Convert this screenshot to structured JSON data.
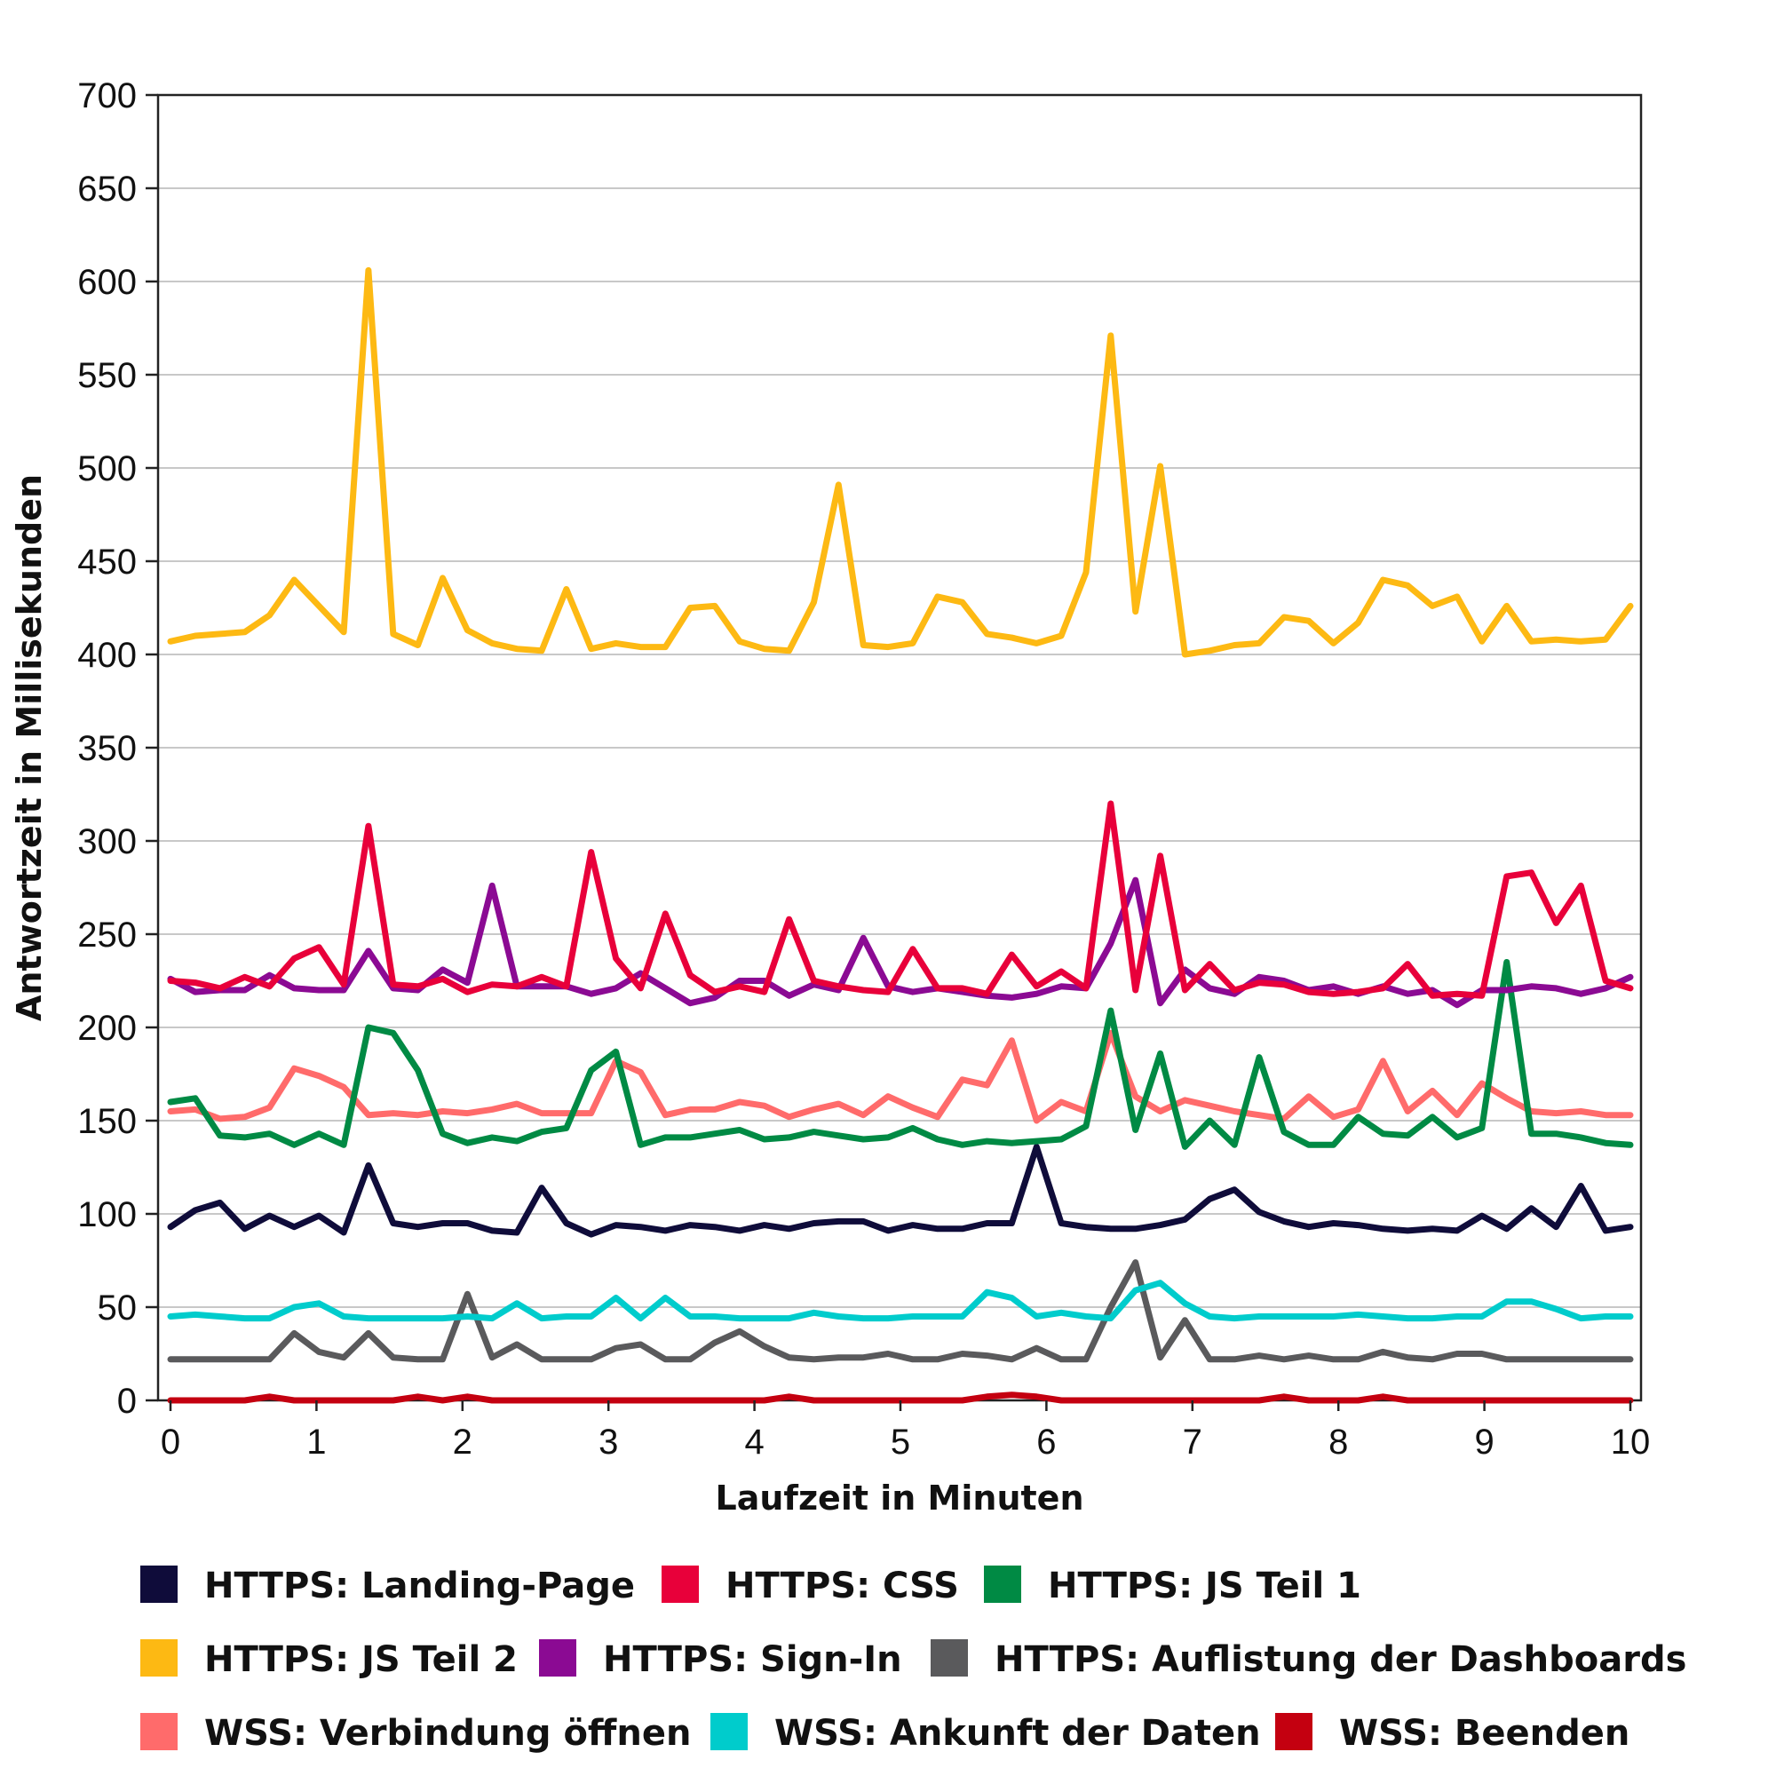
{
  "chart_data": {
    "type": "line",
    "title": "",
    "xlabel": "Laufzeit in Minuten",
    "ylabel": "Antwortzeit in Millisekunden",
    "xlim": [
      0,
      10
    ],
    "ylim": [
      0,
      700
    ],
    "xticks": [
      "0",
      "1",
      "2",
      "3",
      "4",
      "5",
      "6",
      "7",
      "8",
      "9",
      "10"
    ],
    "yticks": [
      "0",
      "50",
      "100",
      "150",
      "200",
      "250",
      "300",
      "350",
      "400",
      "450",
      "500",
      "550",
      "600",
      "650",
      "700"
    ],
    "grid": "horizontal",
    "legend_position": "bottom",
    "series": [
      {
        "name": "HTTPS: Landing-Page",
        "color": "#0f0c3a",
        "values": [
          93,
          102,
          106,
          92,
          99,
          93,
          99,
          90,
          126,
          95,
          93,
          95,
          95,
          91,
          90,
          114,
          95,
          89,
          94,
          93,
          91,
          94,
          93,
          91,
          94,
          92,
          95,
          96,
          96,
          91,
          94,
          92,
          92,
          95,
          95,
          136,
          95,
          93,
          92,
          92,
          94,
          97,
          108,
          113,
          101,
          96,
          93,
          95,
          94,
          92,
          91,
          92,
          91,
          99,
          92,
          103,
          93,
          115,
          91,
          93
        ]
      },
      {
        "name": "HTTPS: CSS",
        "color": "#e8003a",
        "values": [
          225,
          224,
          221,
          227,
          222,
          237,
          243,
          223,
          308,
          223,
          222,
          226,
          219,
          223,
          222,
          227,
          222,
          294,
          237,
          221,
          261,
          228,
          219,
          222,
          219,
          258,
          225,
          222,
          220,
          219,
          242,
          221,
          221,
          218,
          239,
          222,
          230,
          221,
          320,
          220,
          292,
          220,
          234,
          220,
          224,
          223,
          219,
          218,
          219,
          221,
          234,
          217,
          218,
          217,
          281,
          283,
          256,
          276,
          225,
          221
        ]
      },
      {
        "name": "HTTPS: JS Teil 1",
        "color": "#008a44",
        "values": [
          160,
          162,
          142,
          141,
          143,
          137,
          143,
          137,
          200,
          197,
          177,
          143,
          138,
          141,
          139,
          144,
          146,
          177,
          187,
          137,
          141,
          141,
          143,
          145,
          140,
          141,
          144,
          142,
          140,
          141,
          146,
          140,
          137,
          139,
          138,
          139,
          140,
          147,
          209,
          145,
          186,
          136,
          150,
          137,
          184,
          144,
          137,
          137,
          152,
          143,
          142,
          152,
          141,
          146,
          235,
          143,
          143,
          141,
          138,
          137
        ]
      },
      {
        "name": "HTTPS: JS Teil 2",
        "color": "#fdb913",
        "values": [
          407,
          410,
          411,
          412,
          421,
          440,
          426,
          412,
          606,
          411,
          405,
          441,
          413,
          406,
          403,
          402,
          435,
          403,
          406,
          404,
          404,
          425,
          426,
          407,
          403,
          402,
          428,
          491,
          405,
          404,
          406,
          431,
          428,
          411,
          409,
          406,
          410,
          444,
          571,
          423,
          501,
          400,
          402,
          405,
          406,
          420,
          418,
          406,
          417,
          440,
          437,
          426,
          431,
          407,
          426,
          407,
          408,
          407,
          408,
          426
        ]
      },
      {
        "name": "HTTPS: Sign-In",
        "color": "#8b0a93",
        "values": [
          226,
          219,
          220,
          220,
          228,
          221,
          220,
          220,
          241,
          221,
          220,
          231,
          224,
          276,
          222,
          222,
          222,
          218,
          221,
          229,
          221,
          213,
          216,
          225,
          225,
          217,
          223,
          220,
          248,
          222,
          219,
          221,
          219,
          217,
          216,
          218,
          222,
          221,
          245,
          279,
          213,
          231,
          221,
          218,
          227,
          225,
          220,
          222,
          218,
          222,
          218,
          220,
          212,
          220,
          220,
          222,
          221,
          218,
          221,
          227
        ]
      },
      {
        "name": "HTTPS: Auflistung der Dashboards",
        "color": "#5a5a5c",
        "values": [
          22,
          22,
          22,
          22,
          22,
          36,
          26,
          23,
          36,
          23,
          22,
          22,
          57,
          23,
          30,
          22,
          22,
          22,
          28,
          30,
          22,
          22,
          31,
          37,
          29,
          23,
          22,
          23,
          23,
          25,
          22,
          22,
          25,
          24,
          22,
          28,
          22,
          22,
          50,
          74,
          23,
          43,
          22,
          22,
          24,
          22,
          24,
          22,
          22,
          26,
          23,
          22,
          25,
          25,
          22,
          22,
          22,
          22,
          22,
          22
        ]
      },
      {
        "name": "WSS: Verbindung öffnen",
        "color": "#ff6b6b",
        "values": [
          155,
          156,
          151,
          152,
          157,
          178,
          174,
          168,
          153,
          154,
          153,
          155,
          154,
          156,
          159,
          154,
          154,
          154,
          182,
          176,
          153,
          156,
          156,
          160,
          158,
          152,
          156,
          159,
          153,
          163,
          157,
          152,
          172,
          169,
          193,
          150,
          160,
          155,
          197,
          163,
          155,
          161,
          158,
          155,
          153,
          151,
          163,
          152,
          156,
          182,
          155,
          166,
          153,
          170,
          162,
          155,
          154,
          155,
          153,
          153
        ]
      },
      {
        "name": "WSS: Ankunft der Daten",
        "color": "#00cccc",
        "values": [
          45,
          46,
          45,
          44,
          44,
          50,
          52,
          45,
          44,
          44,
          44,
          44,
          45,
          44,
          52,
          44,
          45,
          45,
          55,
          44,
          55,
          45,
          45,
          44,
          44,
          44,
          47,
          45,
          44,
          44,
          45,
          45,
          45,
          58,
          55,
          45,
          47,
          45,
          44,
          59,
          63,
          52,
          45,
          44,
          45,
          45,
          45,
          45,
          46,
          45,
          44,
          44,
          45,
          45,
          53,
          53,
          49,
          44,
          45,
          45
        ]
      },
      {
        "name": "WSS: Beenden",
        "color": "#c40010",
        "values": [
          0,
          0,
          0,
          0,
          2,
          0,
          0,
          0,
          0,
          0,
          2,
          0,
          2,
          0,
          0,
          0,
          0,
          0,
          0,
          0,
          0,
          0,
          0,
          0,
          0,
          2,
          0,
          0,
          0,
          0,
          0,
          0,
          0,
          2,
          3,
          2,
          0,
          0,
          0,
          0,
          0,
          0,
          0,
          0,
          0,
          2,
          0,
          0,
          0,
          2,
          0,
          0,
          0,
          0,
          0,
          0,
          0,
          0,
          0,
          0
        ]
      }
    ]
  }
}
